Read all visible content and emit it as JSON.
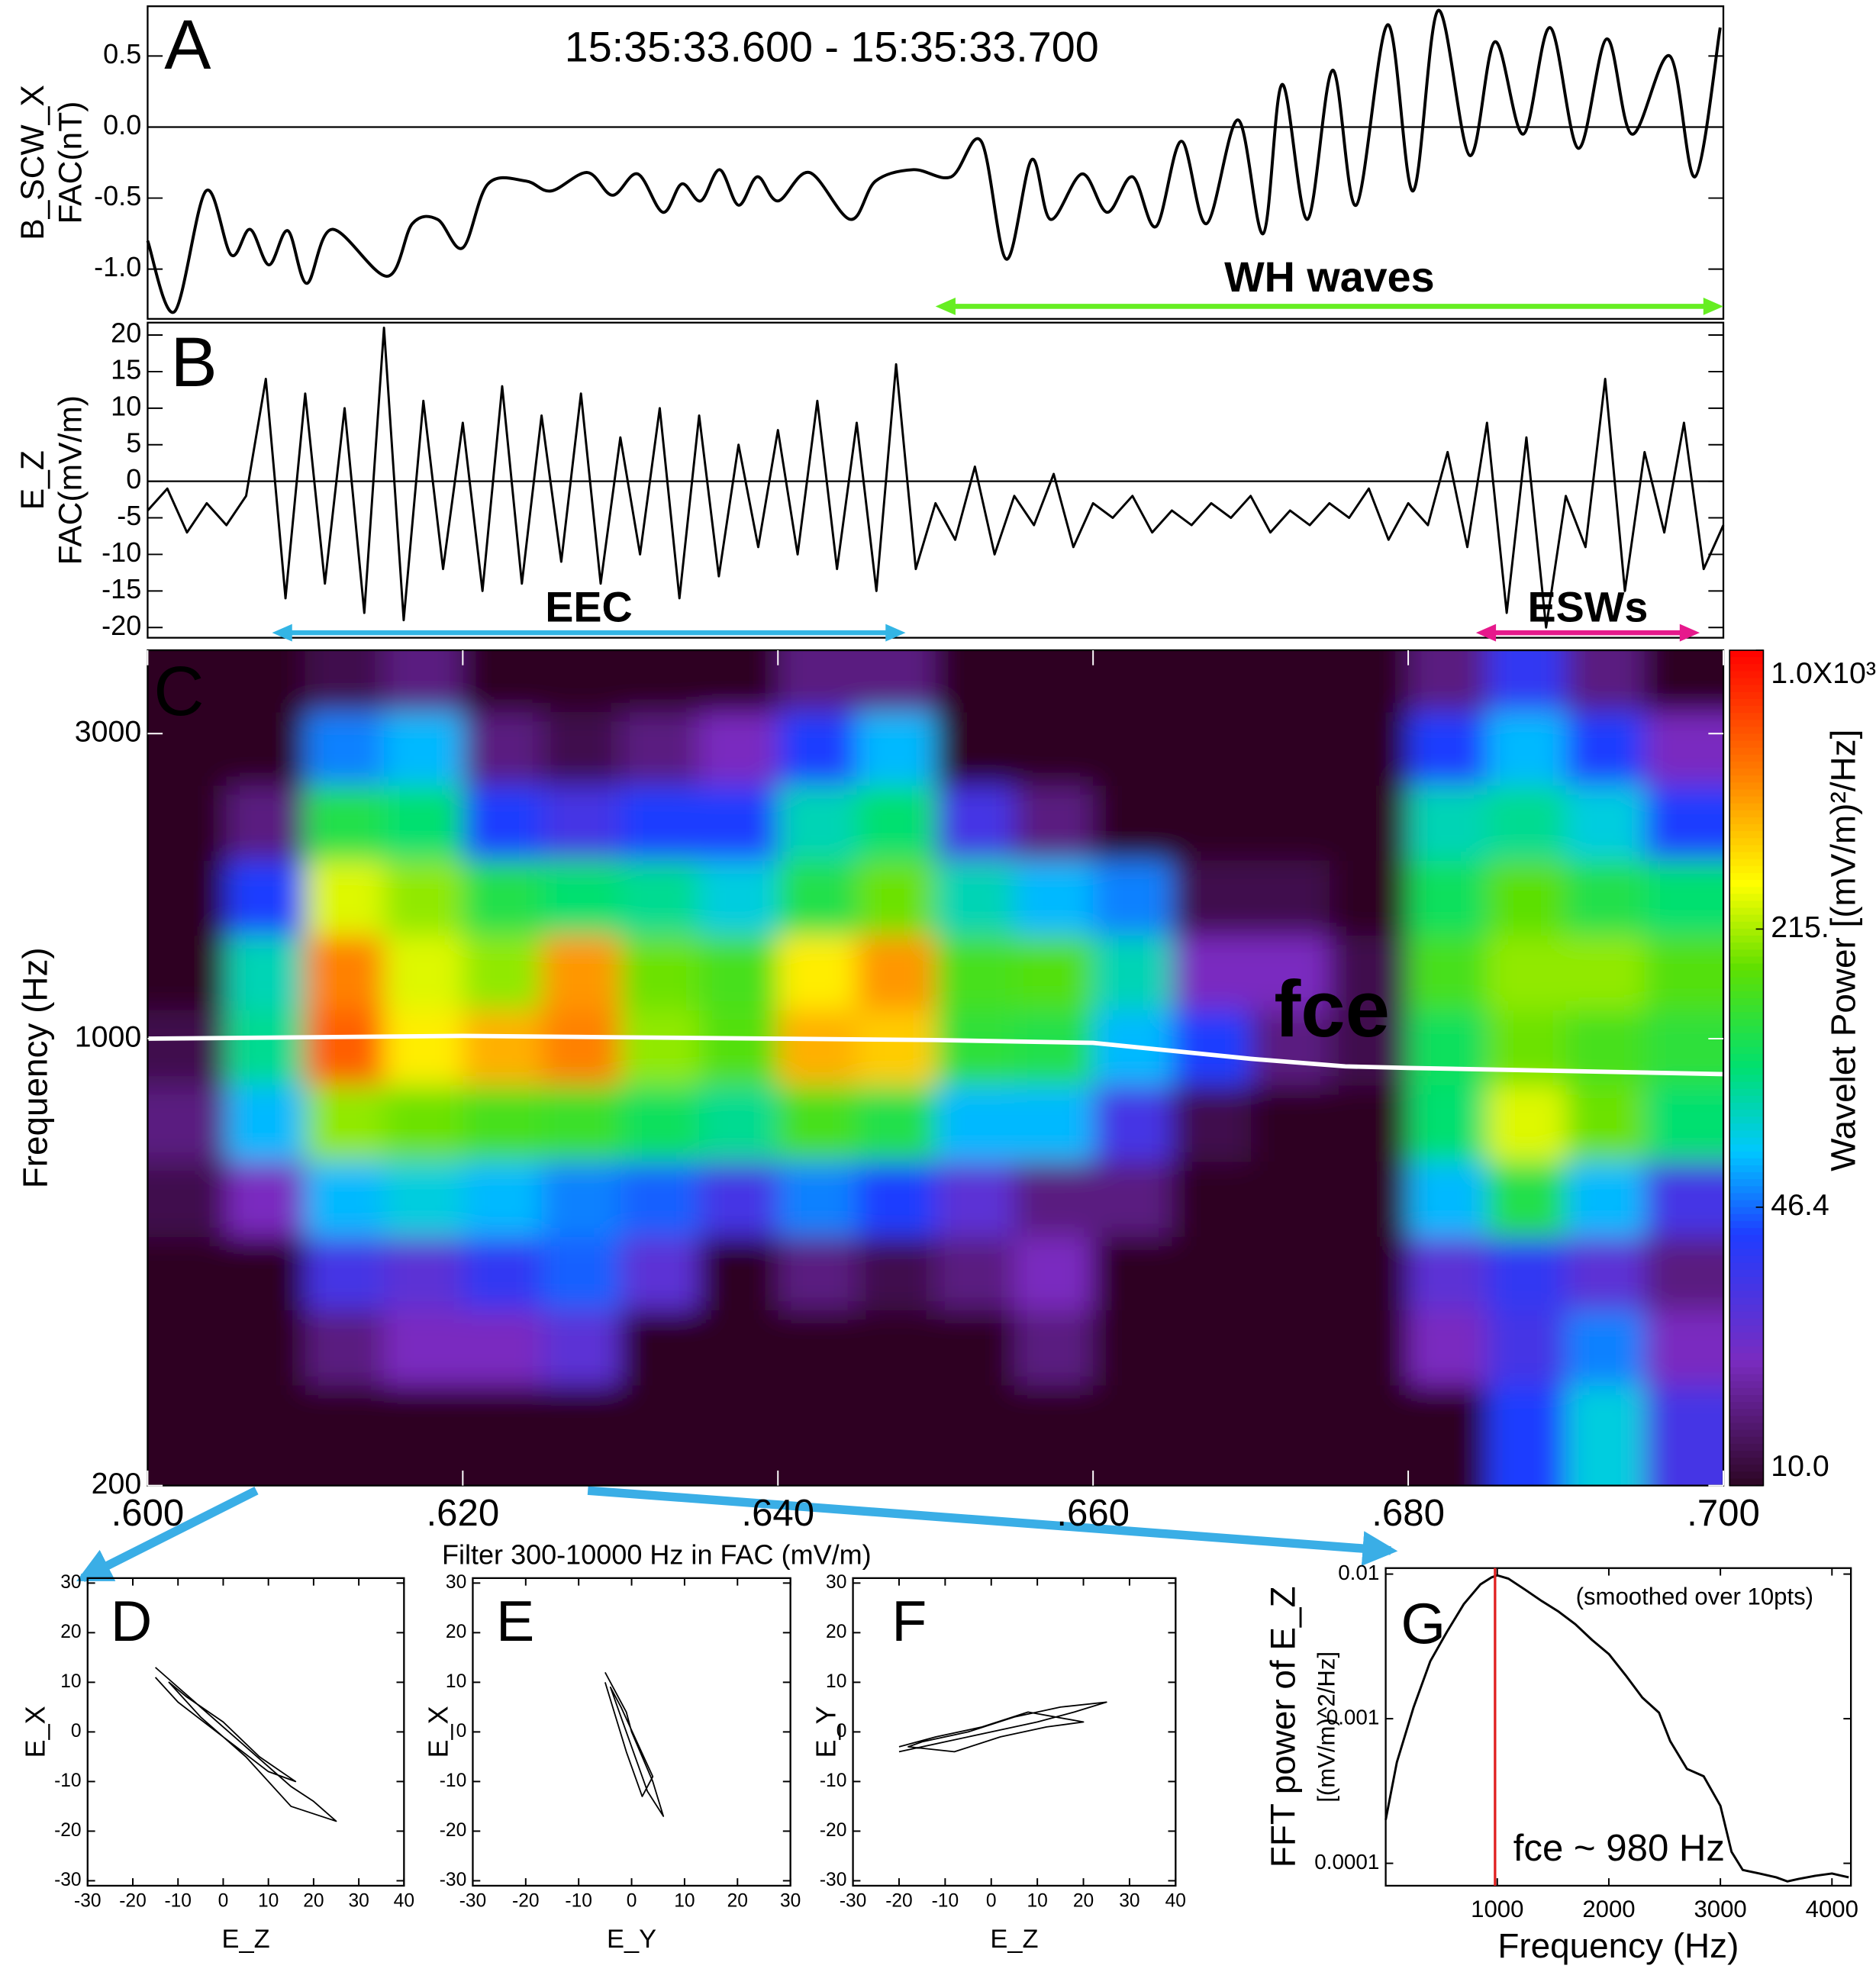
{
  "chart_data": [
    {
      "type": "line",
      "label": "A",
      "title": "15:35:33.600 - 15:35:33.700",
      "ylabel": [
        "B_SCW_X",
        "FAC(nT)"
      ],
      "smooth": true,
      "zero_line": true,
      "color": "#000000",
      "x": [
        0.6,
        0.6017,
        0.6037,
        0.6053,
        0.6065,
        0.6077,
        0.6089,
        0.6101,
        0.6117,
        0.6152,
        0.6168,
        0.6184,
        0.62,
        0.6216,
        0.624,
        0.6256,
        0.6279,
        0.6295,
        0.6311,
        0.6327,
        0.6339,
        0.6351,
        0.6363,
        0.6375,
        0.6387,
        0.64,
        0.642,
        0.6446,
        0.6462,
        0.6486,
        0.651,
        0.6529,
        0.6545,
        0.6561,
        0.6573,
        0.6593,
        0.6609,
        0.6625,
        0.664,
        0.6656,
        0.6672,
        0.6692,
        0.6708,
        0.672,
        0.6736,
        0.6752,
        0.6767,
        0.6787,
        0.6803,
        0.6819,
        0.6839,
        0.6855,
        0.6873,
        0.689,
        0.6908,
        0.6926,
        0.6942,
        0.6966,
        0.6982,
        0.6998
      ],
      "values": [
        -0.8,
        -1.3,
        -0.45,
        -0.9,
        -0.72,
        -0.97,
        -0.73,
        -1.1,
        -0.72,
        -1.05,
        -0.68,
        -0.65,
        -0.85,
        -0.4,
        -0.38,
        -0.45,
        -0.32,
        -0.48,
        -0.33,
        -0.6,
        -0.4,
        -0.52,
        -0.3,
        -0.55,
        -0.35,
        -0.52,
        -0.32,
        -0.65,
        -0.38,
        -0.3,
        -0.35,
        -0.1,
        -0.93,
        -0.23,
        -0.65,
        -0.33,
        -0.6,
        -0.35,
        -0.7,
        -0.1,
        -0.68,
        0.05,
        -0.75,
        0.3,
        -0.65,
        0.4,
        -0.55,
        0.72,
        -0.45,
        0.82,
        -0.2,
        0.6,
        -0.05,
        0.7,
        -0.15,
        0.62,
        -0.05,
        0.5,
        -0.35,
        0.7
      ],
      "xlim": [
        0.6,
        0.7
      ],
      "ylim": [
        -1.35,
        0.85
      ],
      "yticks": [
        {
          "value": -1,
          "label": "-1.0"
        },
        -0.5,
        {
          "value": 0,
          "label": "0.0"
        },
        0.5
      ],
      "annotations": [
        {
          "text": "WH waves",
          "x": [
            0.65,
            0.7
          ],
          "color": "#66ee22"
        }
      ]
    },
    {
      "type": "line",
      "label": "B",
      "ylabel": [
        "E_Z",
        "FAC(mV/m)"
      ],
      "zero_line": true,
      "color": "#000000",
      "x": [
        0.6,
        0.60125,
        0.6025,
        0.60375,
        0.605,
        0.60625,
        0.6075,
        0.60875,
        0.61,
        0.61125,
        0.6125,
        0.61375,
        0.615,
        0.61625,
        0.6175,
        0.61875,
        0.62,
        0.62125,
        0.6225,
        0.62375,
        0.625,
        0.62625,
        0.6275,
        0.62875,
        0.63,
        0.63125,
        0.6325,
        0.63375,
        0.635,
        0.63625,
        0.6375,
        0.63875,
        0.64,
        0.64125,
        0.6425,
        0.64375,
        0.645,
        0.64625,
        0.6475,
        0.64875,
        0.65,
        0.65125,
        0.6525,
        0.65375,
        0.655,
        0.65625,
        0.6575,
        0.65875,
        0.66,
        0.66125,
        0.6625,
        0.66375,
        0.665,
        0.66625,
        0.6675,
        0.66875,
        0.67,
        0.67125,
        0.6725,
        0.67375,
        0.675,
        0.67625,
        0.6775,
        0.67875,
        0.68,
        0.68125,
        0.6825,
        0.68375,
        0.685,
        0.68625,
        0.6875,
        0.68875,
        0.69,
        0.69125,
        0.6925,
        0.69375,
        0.695,
        0.69625,
        0.6975,
        0.69875,
        0.7
      ],
      "values": [
        -4,
        -1,
        -7,
        -3,
        -6,
        -2,
        14,
        -16,
        12,
        -14,
        10,
        -18,
        21,
        -19,
        11,
        -12,
        8,
        -15,
        13,
        -14,
        9,
        -11,
        12,
        -14,
        6,
        -10,
        10,
        -16,
        9,
        -13,
        5,
        -9,
        7,
        -10,
        11,
        -12,
        8,
        -15,
        16,
        -12,
        -3,
        -8,
        2,
        -10,
        -2,
        -6,
        1,
        -9,
        -3,
        -5,
        -2,
        -7,
        -4,
        -6,
        -3,
        -5,
        -2,
        -7,
        -4,
        -6,
        -3,
        -5,
        -1,
        -8,
        -3,
        -6,
        4,
        -9,
        8,
        -18,
        6,
        -20,
        -2,
        -9,
        14,
        -15,
        4,
        -7,
        8,
        -12,
        -6
      ],
      "xlim": [
        0.6,
        0.7
      ],
      "ylim": [
        -21.4,
        21.7
      ],
      "yticks": [
        -20,
        -15,
        -10,
        -5,
        0,
        5,
        10,
        15,
        20
      ],
      "annotations": [
        {
          "text": "EEC",
          "x": [
            0.6079,
            0.6481
          ],
          "color": "#33b5e5"
        },
        {
          "text": "ESWs",
          "x": [
            0.6843,
            0.6985
          ],
          "color": "#e6198c"
        }
      ]
    },
    {
      "type": "heatmap",
      "label": "C",
      "ylabel": [
        "Frequency (Hz)"
      ],
      "ylog": true,
      "background": "#2d0624",
      "xlim": [
        0.6,
        0.7
      ],
      "ylim": [
        200,
        4050
      ],
      "xticks": [
        {
          "value": 0.6,
          "label": ".600"
        },
        {
          "value": 0.62,
          "label": ".620"
        },
        {
          "value": 0.64,
          "label": ".640"
        },
        {
          "value": 0.66,
          "label": ".660"
        },
        {
          "value": 0.68,
          "label": ".680"
        },
        {
          "value": 0.7,
          "label": ".700"
        }
      ],
      "yticks": [
        200,
        1000,
        3000
      ],
      "x": [
        0.6025,
        0.6075,
        0.6125,
        0.6175,
        0.6225,
        0.6275,
        0.6325,
        0.6375,
        0.6425,
        0.6475,
        0.6525,
        0.6575,
        0.6625,
        0.6675,
        0.6725,
        0.6775,
        0.6825,
        0.6875,
        0.6925,
        0.6975
      ],
      "y": [
        250,
        330,
        430,
        560,
        740,
        970,
        1270,
        1660,
        2180,
        2850,
        3700
      ],
      "z": [
        [
          10,
          10,
          10,
          10,
          10,
          10,
          10,
          10,
          10,
          10,
          10,
          10,
          10,
          10,
          10,
          10,
          10,
          40,
          70,
          30
        ],
        [
          10,
          10,
          15,
          20,
          20,
          25,
          10,
          10,
          10,
          10,
          10,
          15,
          10,
          10,
          10,
          10,
          20,
          30,
          50,
          20
        ],
        [
          10,
          10,
          30,
          25,
          35,
          45,
          25,
          10,
          15,
          12,
          15,
          20,
          10,
          10,
          10,
          10,
          25,
          35,
          25,
          15
        ],
        [
          12,
          20,
          60,
          70,
          60,
          50,
          45,
          30,
          50,
          40,
          25,
          15,
          15,
          10,
          10,
          10,
          60,
          120,
          60,
          30
        ],
        [
          15,
          60,
          200,
          180,
          150,
          140,
          110,
          90,
          150,
          120,
          60,
          60,
          30,
          12,
          10,
          10,
          100,
          250,
          180,
          100
        ],
        [
          12,
          90,
          600,
          300,
          400,
          500,
          200,
          160,
          400,
          350,
          130,
          120,
          60,
          40,
          15,
          12,
          110,
          180,
          150,
          130
        ],
        [
          10,
          80,
          500,
          250,
          200,
          450,
          180,
          150,
          300,
          450,
          150,
          160,
          80,
          20,
          20,
          12,
          150,
          200,
          200,
          160
        ],
        [
          10,
          40,
          250,
          200,
          120,
          100,
          90,
          70,
          120,
          180,
          80,
          60,
          50,
          12,
          12,
          10,
          110,
          170,
          120,
          100
        ],
        [
          10,
          15,
          120,
          100,
          40,
          30,
          40,
          40,
          80,
          100,
          30,
          15,
          10,
          10,
          10,
          10,
          80,
          90,
          70,
          40
        ],
        [
          10,
          10,
          50,
          60,
          15,
          12,
          15,
          20,
          40,
          60,
          10,
          10,
          10,
          10,
          10,
          10,
          40,
          60,
          40,
          20
        ],
        [
          10,
          10,
          12,
          15,
          10,
          10,
          10,
          10,
          15,
          15,
          10,
          10,
          10,
          10,
          10,
          10,
          15,
          35,
          15,
          10
        ]
      ],
      "overlay": {
        "x": [
          0.6,
          0.61,
          0.62,
          0.63,
          0.64,
          0.65,
          0.66,
          0.67,
          0.676,
          0.68,
          0.69,
          0.7
        ],
        "values": [
          1000,
          1005,
          1010,
          1005,
          1000,
          995,
          985,
          930,
          905,
          900,
          890,
          880
        ],
        "color": "#ffffff"
      },
      "annotations": [
        {
          "text": "fce",
          "color": "#ffffff"
        }
      ],
      "colorbar": {
        "label": "Wavelet Power [(mV/m)²/Hz]",
        "lim": [
          10,
          1000
        ],
        "log": true,
        "ticks": [
          {
            "value": 10,
            "label": "10.0"
          },
          46.4,
          {
            "value": 215,
            "label": "215."
          },
          {
            "value": 1000,
            "label": "1.0X10³"
          }
        ]
      },
      "caption": "Filter 300-10000 Hz in FAC (mV/m)"
    },
    {
      "type": "hodogram",
      "label": "D",
      "xlabel": "E_Z",
      "ylabel": [
        "E_X"
      ],
      "color": "#000000",
      "x": [
        -15,
        -10,
        -5,
        0,
        5,
        10,
        15,
        20,
        25,
        15,
        5,
        -5,
        -12,
        -8,
        0,
        8,
        16,
        10,
        0,
        -10,
        -15
      ],
      "values": [
        13,
        9,
        5,
        1,
        -3,
        -7,
        -11,
        -14,
        -18,
        -15,
        -5,
        3,
        10,
        7,
        2,
        -5,
        -10,
        -8,
        -1,
        6,
        11
      ],
      "xlim": [
        -30,
        40
      ],
      "ylim": [
        -31,
        31
      ],
      "xticks": [
        -30,
        -20,
        -10,
        0,
        10,
        20,
        30,
        40
      ],
      "yticks": [
        -30,
        -20,
        -10,
        0,
        10,
        20,
        30
      ]
    },
    {
      "type": "hodogram",
      "label": "E",
      "xlabel": "E_Y",
      "ylabel": [
        "E_X"
      ],
      "color": "#000000",
      "x": [
        -5,
        -3,
        -1,
        0,
        2,
        4,
        6,
        3,
        0,
        -2,
        -4,
        -2,
        1,
        4,
        2,
        -1,
        -5
      ],
      "values": [
        12,
        8,
        4,
        0,
        -5,
        -10,
        -17,
        -12,
        -3,
        3,
        9,
        5,
        -2,
        -9,
        -13,
        -4,
        10
      ],
      "xlim": [
        -30,
        30
      ],
      "ylim": [
        -31,
        31
      ],
      "xticks": [
        -30,
        -20,
        -10,
        0,
        10,
        20,
        30
      ],
      "yticks": [
        -30,
        -20,
        -10,
        0,
        10,
        20,
        30
      ]
    },
    {
      "type": "hodogram",
      "label": "F",
      "xlabel": "E_Z",
      "ylabel": [
        "E_Y"
      ],
      "color": "#000000",
      "x": [
        -20,
        -10,
        0,
        10,
        18,
        25,
        15,
        5,
        -5,
        -15,
        -18,
        -8,
        2,
        12,
        20,
        8,
        -2,
        -12,
        -20
      ],
      "values": [
        -4,
        -2,
        0,
        2,
        4,
        6,
        5,
        3,
        0,
        -2,
        -3,
        -4,
        -1,
        1,
        2,
        4,
        1,
        -1,
        -3
      ],
      "xlim": [
        -30,
        40
      ],
      "ylim": [
        -31,
        31
      ],
      "xticks": [
        -30,
        -20,
        -10,
        0,
        10,
        20,
        30,
        40
      ],
      "yticks": [
        -30,
        -20,
        -10,
        0,
        10,
        20,
        30
      ]
    },
    {
      "type": "line",
      "label": "G",
      "xlabel": "Frequency (Hz)",
      "ylabel": [
        "FFT power of E_Z",
        "[(mV/m)^2/Hz]"
      ],
      "ylog": true,
      "color": "#000000",
      "x": [
        0,
        100,
        250,
        400,
        550,
        700,
        850,
        950,
        1000,
        1100,
        1250,
        1400,
        1550,
        1700,
        1850,
        2000,
        2150,
        2300,
        2450,
        2550,
        2700,
        2850,
        3000,
        3100,
        3200,
        3350,
        3500,
        3600,
        3700,
        3850,
        4000,
        4150
      ],
      "values": [
        0.0002,
        0.0005,
        0.0012,
        0.0025,
        0.004,
        0.0062,
        0.0085,
        0.0095,
        0.0098,
        0.0093,
        0.0078,
        0.0065,
        0.0055,
        0.0045,
        0.0035,
        0.0028,
        0.002,
        0.0014,
        0.0011,
        0.0007,
        0.00045,
        0.0004,
        0.00025,
        0.00012,
        9e-05,
        8.5e-05,
        8e-05,
        7.5e-05,
        7.8e-05,
        8.2e-05,
        8.5e-05,
        8e-05
      ],
      "xlim": [
        0,
        4170
      ],
      "ylim": [
        7e-05,
        0.011
      ],
      "xticks": [
        1000,
        2000,
        3000,
        4000
      ],
      "yticks": [
        0.0001,
        0.001,
        0.01
      ],
      "vline": {
        "value": 980,
        "color": "#e02020"
      },
      "annotations": [
        {
          "text": "(smoothed over 10pts)"
        },
        {
          "text": "fce ~ 980 Hz",
          "color": "#e02020"
        }
      ]
    }
  ]
}
